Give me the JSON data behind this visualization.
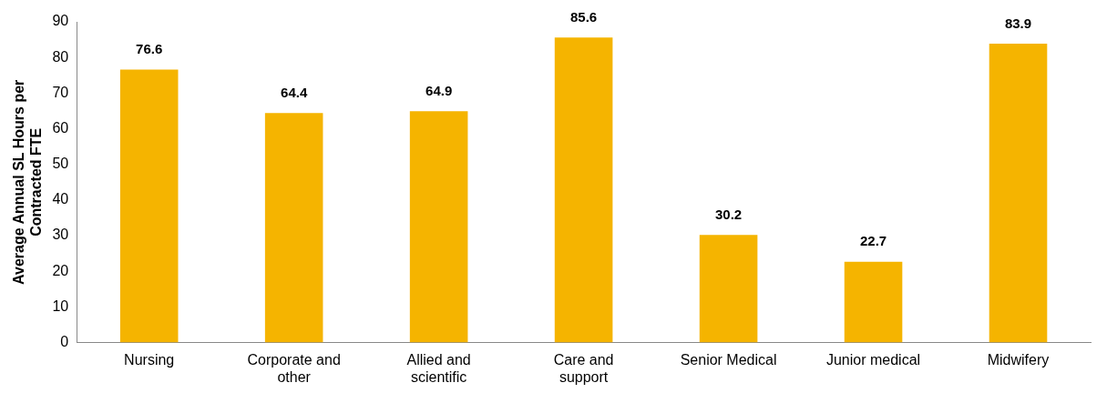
{
  "chart_data": {
    "type": "bar",
    "ylabel": "Average Annual SL Hours per Contracted FTE",
    "categories": [
      "Nursing",
      "Corporate and other",
      "Allied and scientific",
      "Care and support",
      "Senior Medical",
      "Junior medical",
      "Midwifery"
    ],
    "values": [
      76.6,
      64.4,
      64.9,
      85.6,
      30.2,
      22.7,
      83.9
    ],
    "color": "#f5b400",
    "ylim": [
      0,
      90
    ],
    "yticks": [
      0,
      10,
      20,
      30,
      40,
      50,
      60,
      70,
      80,
      90
    ],
    "grid": false,
    "legend": false,
    "data_labels": true
  }
}
